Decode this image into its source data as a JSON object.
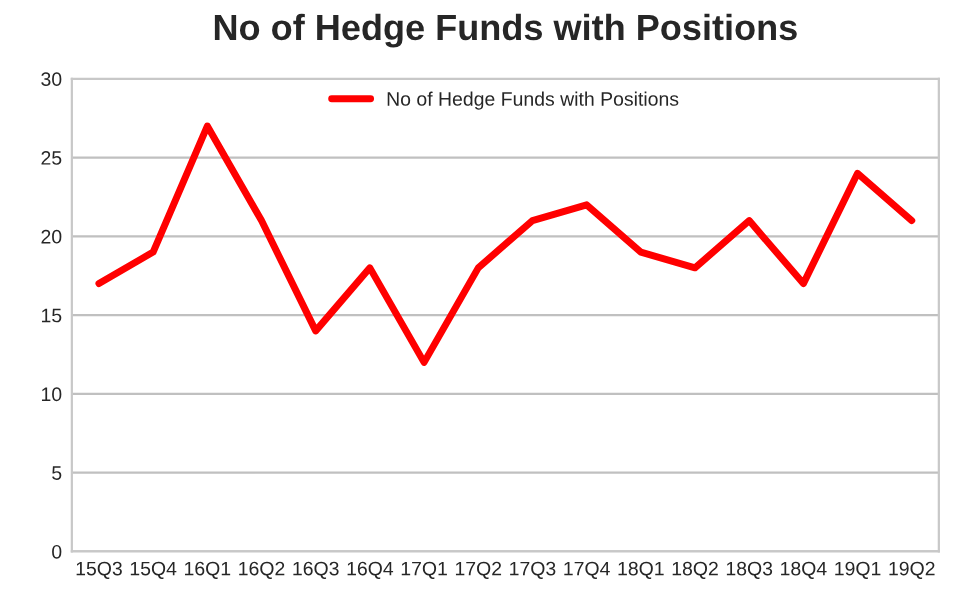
{
  "chart_data": {
    "type": "line",
    "title": "No of Hedge Funds with Positions",
    "categories": [
      "15Q3",
      "15Q4",
      "16Q1",
      "16Q2",
      "16Q3",
      "16Q4",
      "17Q1",
      "17Q2",
      "17Q3",
      "17Q4",
      "18Q1",
      "18Q2",
      "18Q3",
      "18Q4",
      "19Q1",
      "19Q2"
    ],
    "series": [
      {
        "name": "No of Hedge Funds with Positions",
        "color": "#ff0000",
        "values": [
          17,
          19,
          27,
          21,
          14,
          18,
          12,
          18,
          21,
          22,
          19,
          18,
          21,
          17,
          24,
          21
        ]
      }
    ],
    "ylim": [
      0,
      30
    ],
    "yticks": [
      0,
      5,
      10,
      15,
      20,
      25,
      30
    ],
    "grid": "y",
    "legend": "top",
    "marker": "none",
    "line_style": "solid"
  }
}
